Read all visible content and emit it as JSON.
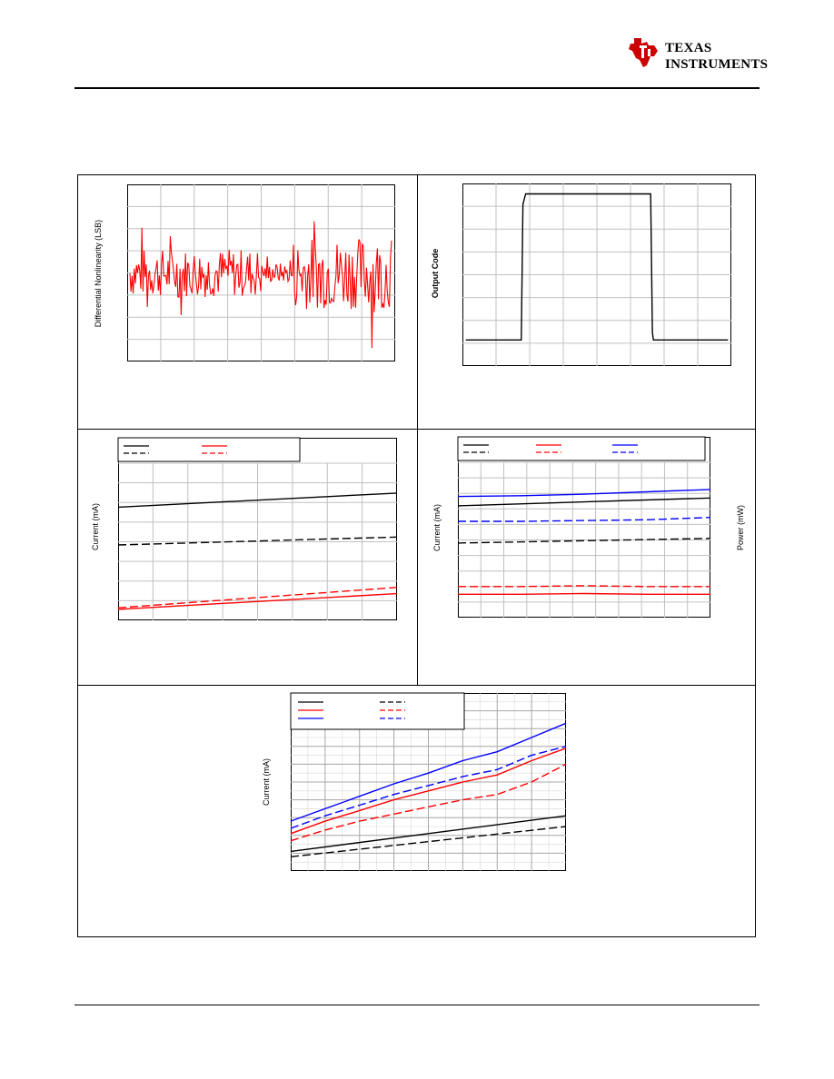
{
  "header": {
    "logo_line1": "TEXAS",
    "logo_line2": "INSTRUMENTS",
    "brand_color": "#cc0000"
  },
  "charts": {
    "dnl": {
      "ylabel": "Differential Nonlinearity (LSB)"
    },
    "pulse": {
      "ylabel": "Output Code"
    },
    "current1": {
      "ylabel": "Current (mA)"
    },
    "current2": {
      "ylabel": "Current (mA)",
      "ylabel_right": "Power (mW)"
    },
    "current3": {
      "ylabel": "Current (mA)"
    }
  },
  "chart_data": [
    {
      "id": "dnl",
      "type": "line",
      "description_visible": "DNL noise trace across codes",
      "xlim": [
        0,
        1
      ],
      "ylim": [
        -4,
        4
      ],
      "grid": true,
      "series": [
        {
          "color": "#ff0000",
          "style": "solid",
          "noise_amplitude": 1.3,
          "baseline": 0
        }
      ]
    },
    {
      "id": "pulse",
      "type": "line",
      "xlim": [
        0,
        8
      ],
      "ylim": [
        0,
        7
      ],
      "grid": true,
      "series": [
        {
          "color": "#000000",
          "style": "solid",
          "x": [
            0.1,
            1.75,
            1.8,
            1.88,
            5.55,
            5.6,
            5.65,
            5.68,
            7.9
          ],
          "y": [
            1.0,
            1.0,
            6.2,
            6.6,
            6.6,
            6.6,
            1.3,
            1.0,
            1.0
          ]
        }
      ]
    },
    {
      "id": "current1",
      "type": "line",
      "xlim": [
        0,
        8
      ],
      "ylim": [
        0,
        10
      ],
      "grid": true,
      "legend": "top-left",
      "series": [
        {
          "color": "#000000",
          "style": "solid",
          "x": [
            0,
            8
          ],
          "y": [
            7.2,
            8.1
          ]
        },
        {
          "color": "#000000",
          "style": "dashed",
          "x": [
            0,
            8
          ],
          "y": [
            4.8,
            5.3
          ]
        },
        {
          "color": "#ff0000",
          "style": "solid",
          "x": [
            0,
            8
          ],
          "y": [
            0.7,
            1.7
          ]
        },
        {
          "color": "#ff0000",
          "style": "dashed",
          "x": [
            0,
            8
          ],
          "y": [
            0.8,
            2.1
          ]
        }
      ]
    },
    {
      "id": "current2",
      "type": "line",
      "xlim": [
        0,
        8
      ],
      "ylim": [
        0,
        10
      ],
      "grid": true,
      "legend": "top",
      "series": [
        {
          "color": "#0000ff",
          "style": "solid",
          "x": [
            0,
            2,
            4,
            6,
            8
          ],
          "y": [
            7.8,
            7.85,
            7.95,
            8.1,
            8.25
          ]
        },
        {
          "color": "#000000",
          "style": "solid",
          "x": [
            0,
            8
          ],
          "y": [
            7.2,
            7.7
          ]
        },
        {
          "color": "#0000ff",
          "style": "dashed",
          "x": [
            0,
            2,
            4,
            6,
            8
          ],
          "y": [
            6.2,
            6.2,
            6.25,
            6.3,
            6.45
          ]
        },
        {
          "color": "#000000",
          "style": "dashed",
          "x": [
            0,
            8
          ],
          "y": [
            4.8,
            5.1
          ]
        },
        {
          "color": "#ff0000",
          "style": "dashed",
          "x": [
            0,
            2,
            4,
            6,
            8
          ],
          "y": [
            2.0,
            2.0,
            2.05,
            2.0,
            2.0
          ]
        },
        {
          "color": "#ff0000",
          "style": "solid",
          "x": [
            0,
            2,
            4,
            6,
            8
          ],
          "y": [
            1.5,
            1.5,
            1.55,
            1.5,
            1.5
          ]
        }
      ]
    },
    {
      "id": "current3",
      "type": "line",
      "xlim": [
        0,
        8
      ],
      "ylim": [
        0,
        10
      ],
      "grid": true,
      "legend": "top-left",
      "series": [
        {
          "color": "#0000ff",
          "style": "solid",
          "x": [
            0,
            1,
            2,
            3,
            4,
            5,
            6,
            7,
            8
          ],
          "y": [
            2.8,
            3.5,
            4.2,
            4.9,
            5.5,
            6.2,
            6.7,
            7.5,
            8.3
          ]
        },
        {
          "color": "#0000ff",
          "style": "dashed",
          "x": [
            0,
            1,
            2,
            3,
            4,
            5,
            6,
            7,
            8
          ],
          "y": [
            2.4,
            3.1,
            3.7,
            4.3,
            4.8,
            5.3,
            5.7,
            6.5,
            7.0
          ]
        },
        {
          "color": "#ff0000",
          "style": "solid",
          "x": [
            0,
            1,
            2,
            3,
            4,
            5,
            6,
            7,
            8
          ],
          "y": [
            2.1,
            2.8,
            3.4,
            4.0,
            4.5,
            5.0,
            5.4,
            6.2,
            6.9
          ]
        },
        {
          "color": "#ff0000",
          "style": "dashed",
          "x": [
            0,
            1,
            2,
            3,
            4,
            5,
            6,
            7,
            8
          ],
          "y": [
            1.7,
            2.3,
            2.8,
            3.2,
            3.6,
            4.0,
            4.3,
            5.0,
            6.0
          ]
        },
        {
          "color": "#000000",
          "style": "solid",
          "x": [
            0,
            8
          ],
          "y": [
            1.1,
            3.1
          ]
        },
        {
          "color": "#000000",
          "style": "dashed",
          "x": [
            0,
            8
          ],
          "y": [
            0.8,
            2.5
          ]
        }
      ]
    }
  ]
}
